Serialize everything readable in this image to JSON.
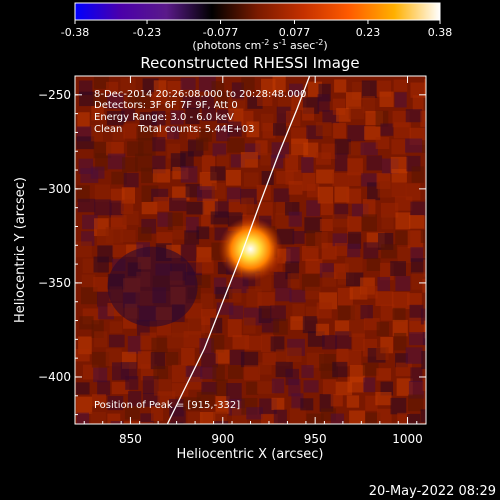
{
  "colorbar": {
    "ticks": [
      "-0.38",
      "-0.23",
      "-0.077",
      "0.077",
      "0.23",
      "0.38"
    ],
    "tick_values": [
      -0.38,
      -0.23,
      -0.077,
      0.077,
      0.23,
      0.38
    ],
    "range": [
      -0.38,
      0.38
    ],
    "units_prefix": "(photons cm",
    "units_exp1": "-2",
    "units_mid": " s",
    "units_exp2": "-1",
    "units_mid2": " asec",
    "units_exp3": "-2",
    "units_suffix": ")",
    "colormap": [
      "#0000ff",
      "#4b00aa",
      "#5a1a8a",
      "#000000",
      "#7a1a00",
      "#c43000",
      "#ff5a00",
      "#ffb000",
      "#ffffff"
    ]
  },
  "chart_data": {
    "type": "heatmap",
    "title": "Reconstructed RHESSI Image",
    "xlabel": "Heliocentric X (arcsec)",
    "ylabel": "Heliocentric Y (arcsec)",
    "xlim": [
      820,
      1010
    ],
    "ylim": [
      -425,
      -240
    ],
    "xticks": [
      850,
      900,
      950,
      1000
    ],
    "yticks": [
      -250,
      -300,
      -350,
      -400
    ],
    "xtick_labels": [
      "850",
      "900",
      "950",
      "1000"
    ],
    "ytick_labels": [
      "−250",
      "−300",
      "−350",
      "−400"
    ],
    "peak": {
      "x": 915,
      "y": -332
    },
    "limb_curve": [
      [
        870,
        -425
      ],
      [
        880,
        -405
      ],
      [
        890,
        -385
      ],
      [
        900,
        -360
      ],
      [
        910,
        -335
      ],
      [
        920,
        -308
      ],
      [
        930,
        -282
      ],
      [
        940,
        -258
      ],
      [
        947,
        -240
      ]
    ],
    "annotations": [
      "8-Dec-2014 20:26:08.000 to 20:28:48.000",
      "Detectors: 3F 6F 7F 9F, Att 0",
      "Energy Range: 3.0 - 6.0 keV",
      "Clean     Total counts: 5.44E+03"
    ],
    "peak_label": "Position of Peak = [915,-332]",
    "grid": false
  },
  "footer": {
    "timestamp": "20-May-2022 08:29"
  }
}
